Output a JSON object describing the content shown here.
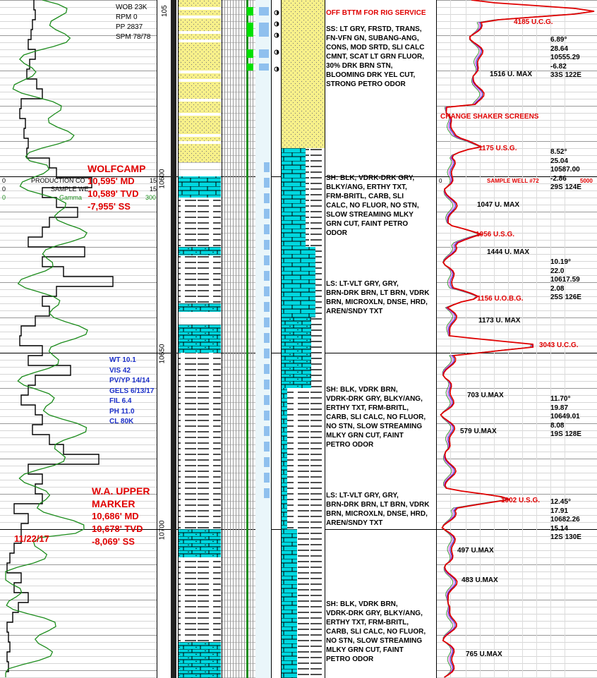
{
  "header": {
    "wob": "WOB 23K",
    "rpm": "RPM 0",
    "pp": "PP 2837",
    "spm": "SPM 78/78"
  },
  "depth_marks": [
    "10600",
    "10650",
    "10700"
  ],
  "depth_cut": "105",
  "left_track": {
    "legend_label_1": "PRODUCTION CO",
    "legend_label_2": "SAMPLE WE",
    "legend_label_3": "Gamma",
    "scale_left_1": "0",
    "scale_left_2": "0",
    "scale_left_3": "0",
    "scale_right_1": "15",
    "scale_right_2": "15",
    "scale_right_3": "300"
  },
  "formation_tops": [
    {
      "name": "WOLFCAMP",
      "md": "10,595' MD",
      "tvd": "10,589' TVD",
      "ss": "-7,955' SS"
    },
    {
      "name_1": "W.A. UPPER",
      "name_2": "MARKER",
      "md": "10,686' MD",
      "tvd": "10,678' TVD",
      "ss": "-8,069' SS"
    }
  ],
  "date": "11/22/17",
  "mud_props": [
    "WT 10.1",
    "VIS 42",
    "PV/YP 14/14",
    "GELS 6/13/17",
    "FIL 6.4",
    "PH 11.0",
    "CL 80K"
  ],
  "descriptions": [
    {
      "lines": [
        "OFF BTTM FOR RIG SERVICE"
      ],
      "red": true
    },
    {
      "lines": [
        "SS: LT GRY, FRSTD, TRANS,",
        "FN-VFN GN, SUBANG-ANG,",
        "CONS, MOD SRTD, SLI CALC",
        "CMNT, SCAT LT GRN FLUOR,",
        "30% DRK BRN STN,",
        "BLOOMING DRK YEL CUT,",
        "STRONG PETRO ODOR"
      ]
    },
    {
      "lines": [
        "CHANGE SHAKER SCREENS"
      ],
      "red": true
    },
    {
      "lines": [
        "SH: BLK, VDRK-DRK GRY,",
        "BLKY/ANG, ERTHY TXT,",
        "FRM-BRITL, CARB, SLI",
        "CALC, NO FLUOR, NO STN,",
        "SLOW STREAMING MLKY",
        "GRN CUT, FAINT PETRO",
        "ODOR"
      ]
    },
    {
      "lines": [
        "LS: LT-VLT GRY, GRY,",
        "BRN-DRK BRN, LT BRN, VDRK",
        "BRN, MICROXLN, DNSE, HRD,",
        "AREN/SNDY TXT"
      ]
    },
    {
      "lines": [
        "SH: BLK, VDRK BRN,",
        "VDRK-DRK GRY, BLKY/ANG,",
        "ERTHY TXT, FRM-BRITL,",
        "CARB, SLI CALC, NO FLUOR,",
        "NO STN, SLOW STREAMING",
        "MLKY GRN CUT, FAINT",
        "PETRO ODOR"
      ]
    },
    {
      "lines": [
        "LS: LT-VLT GRY, GRY,",
        "BRN-DRK BRN, LT BRN, VDRK",
        "BRN, MICROXLN, DNSE, HRD,",
        "AREN/SNDY TXT"
      ]
    },
    {
      "lines": [
        "SH: BLK, VDRK BRN,",
        "VDRK-DRK GRY, BLKY/ANG,",
        "ERTHY TXT, FRM-BRITL,",
        "CARB, SLI CALC, NO FLUOR,",
        "NO STN, SLOW STREAMING",
        "MLKY GRN CUT, FAINT",
        "PETRO ODOR"
      ]
    }
  ],
  "gas_labels": [
    {
      "text": "4185 U.C.G.",
      "red": true
    },
    {
      "text": "1516 U. MAX",
      "red": false
    },
    {
      "text": "1175 U.S.G.",
      "red": true
    },
    {
      "text": "1047 U. MAX",
      "red": false
    },
    {
      "text": "1056 U.S.G.",
      "red": true
    },
    {
      "text": "1444 U. MAX",
      "red": false
    },
    {
      "text": "1156 U.O.B.G.",
      "red": true
    },
    {
      "text": "1173 U. MAX",
      "red": false
    },
    {
      "text": "3043 U.C.G.",
      "red": true
    },
    {
      "text": "703 U.MAX",
      "red": false
    },
    {
      "text": "579 U.MAX",
      "red": false
    },
    {
      "text": "1902 U.S.G.",
      "red": true
    },
    {
      "text": "497 U.MAX",
      "red": false
    },
    {
      "text": "483 U.MAX",
      "red": false
    },
    {
      "text": "765 U.MAX",
      "red": false
    }
  ],
  "surveys": [
    [
      "6.89°",
      "28.64",
      "10555.29",
      "-6.82",
      "33S 122E"
    ],
    [
      "8.52°",
      "25.04",
      "10587.00",
      "-2.86",
      "29S 124E"
    ],
    [
      "10.19°",
      "22.0",
      "10617.59",
      "2.08",
      "25S 126E"
    ],
    [
      "11.70°",
      "19.87",
      "10649.01",
      "8.08",
      "19S 128E"
    ],
    [
      "12.45°",
      "17.91",
      "10682.26",
      "15.14",
      "12S 130E"
    ]
  ],
  "gas_scale": {
    "left": "0",
    "label": "SAMPLE WELL #72",
    "right": "5000"
  },
  "colors": {
    "red": "#e00000",
    "blue": "#1a2ec8",
    "cyan": "#00d8e0",
    "sand": "#f7f08a",
    "green": "#1c8c1c"
  }
}
